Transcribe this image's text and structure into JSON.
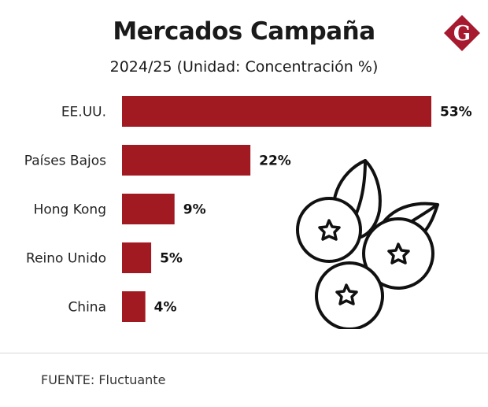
{
  "header": {
    "title": "Mercados Campaña",
    "subtitle": "2024/25 (Unidad: Concentración %)",
    "logo_letter": "G",
    "logo_color": "#a6192e"
  },
  "footer": {
    "source": "FUENTE: Fluctuante"
  },
  "illustration": {
    "icon": "blueberries-icon"
  },
  "chart_data": {
    "type": "bar",
    "orientation": "horizontal",
    "categories": [
      "EE.UU.",
      "Países Bajos",
      "Hong Kong",
      "Reino Unido",
      "China"
    ],
    "values": [
      53,
      22,
      9,
      5,
      4
    ],
    "value_labels": [
      "53%",
      "22%",
      "9%",
      "5%",
      "4%"
    ],
    "unit": "%",
    "xlim": [
      0,
      53
    ],
    "grid": false,
    "bar_color": "#a11a22"
  }
}
